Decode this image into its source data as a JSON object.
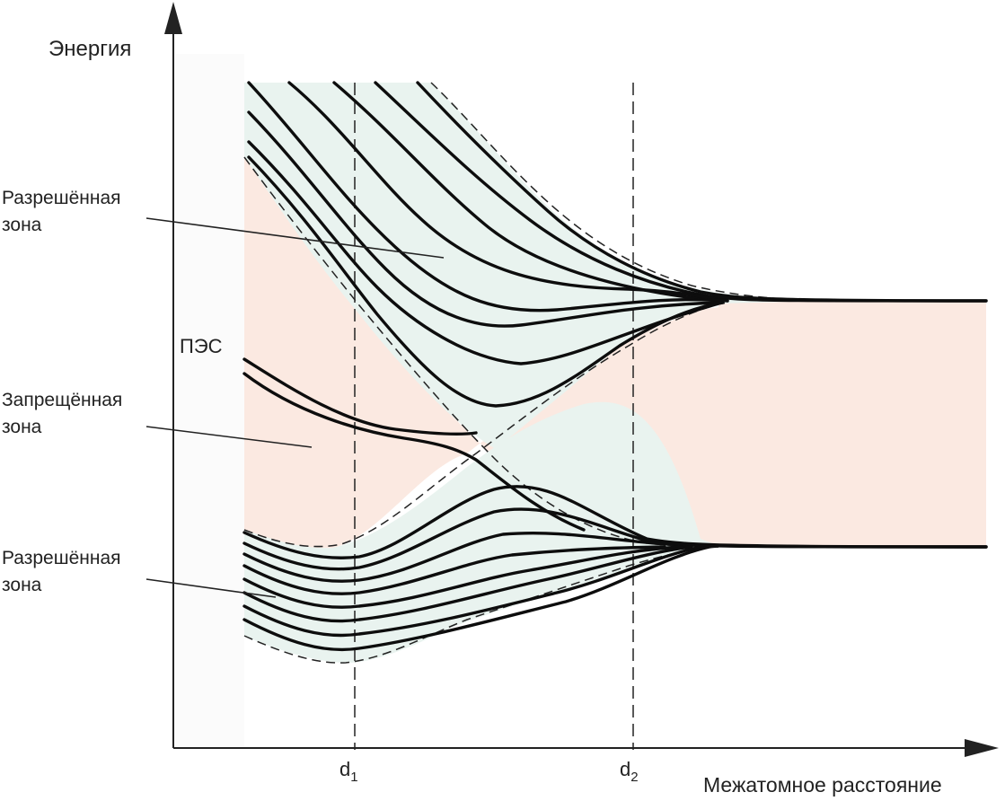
{
  "axes": {
    "y_label": "Энергия",
    "x_label": "Межатомное расстояние",
    "d1_main": "d",
    "d1_sub": "1",
    "d2_main": "d",
    "d2_sub": "2"
  },
  "labels": {
    "allowed_upper": [
      "Разрешённая",
      "зона"
    ],
    "forbidden": [
      "Запрещённая",
      "зона"
    ],
    "allowed_lower": [
      "Разрешённая",
      "зона"
    ],
    "pes": "ПЭС"
  },
  "colors": {
    "allowed_band_fill": "#e9f3ef",
    "forbidden_gap_fill": "#fbe9e1",
    "left_region_fill": "#fbfbfb",
    "curve": "#0d0d0d"
  }
}
